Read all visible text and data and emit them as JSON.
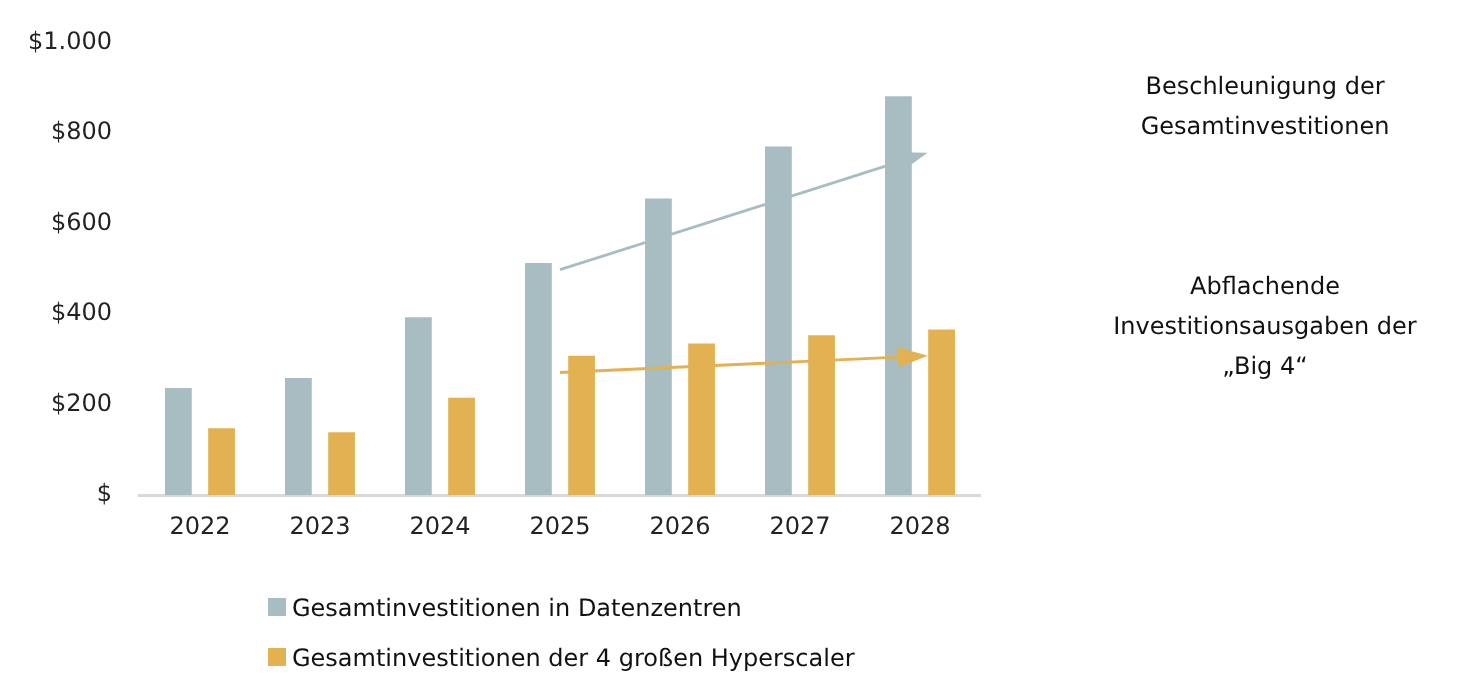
{
  "chart_data": {
    "type": "bar",
    "categories": [
      "2022",
      "2023",
      "2024",
      "2025",
      "2026",
      "2027",
      "2028"
    ],
    "series": [
      {
        "name": "Gesamtinvestitionen in Datenzentren",
        "color": "#a7bdc1",
        "values": [
          237,
          259,
          393,
          513,
          655,
          770,
          881
        ]
      },
      {
        "name": "Gesamtinvestitionen der 4 großen Hyperscaler",
        "color": "#e2b152",
        "values": [
          148,
          139,
          215,
          308,
          335,
          353,
          366
        ]
      },
      {
        "type": "line",
        "color": "#a7bdc1",
        "values": [
          null,
          null,
          null,
          498,
          null,
          null,
          751
        ]
      },
      {
        "type": "line",
        "color": "#e2b152",
        "values": [
          null,
          null,
          null,
          271,
          null,
          null,
          307
        ]
      }
    ],
    "ylim": [
      0,
      1000
    ],
    "yticks": [
      {
        "value": 0,
        "label": "$"
      },
      {
        "value": 200,
        "label": "$200"
      },
      {
        "value": 400,
        "label": "$400"
      },
      {
        "value": 600,
        "label": "$600"
      },
      {
        "value": 800,
        "label": "$800"
      },
      {
        "value": 1000,
        "label": "$1.000"
      }
    ],
    "grid": false,
    "legend": "bottom",
    "annotations": [
      "Beschleunigung der Gesamtinvestitionen",
      "Abflachende Investitionsausgaben der „Big 4“"
    ]
  }
}
